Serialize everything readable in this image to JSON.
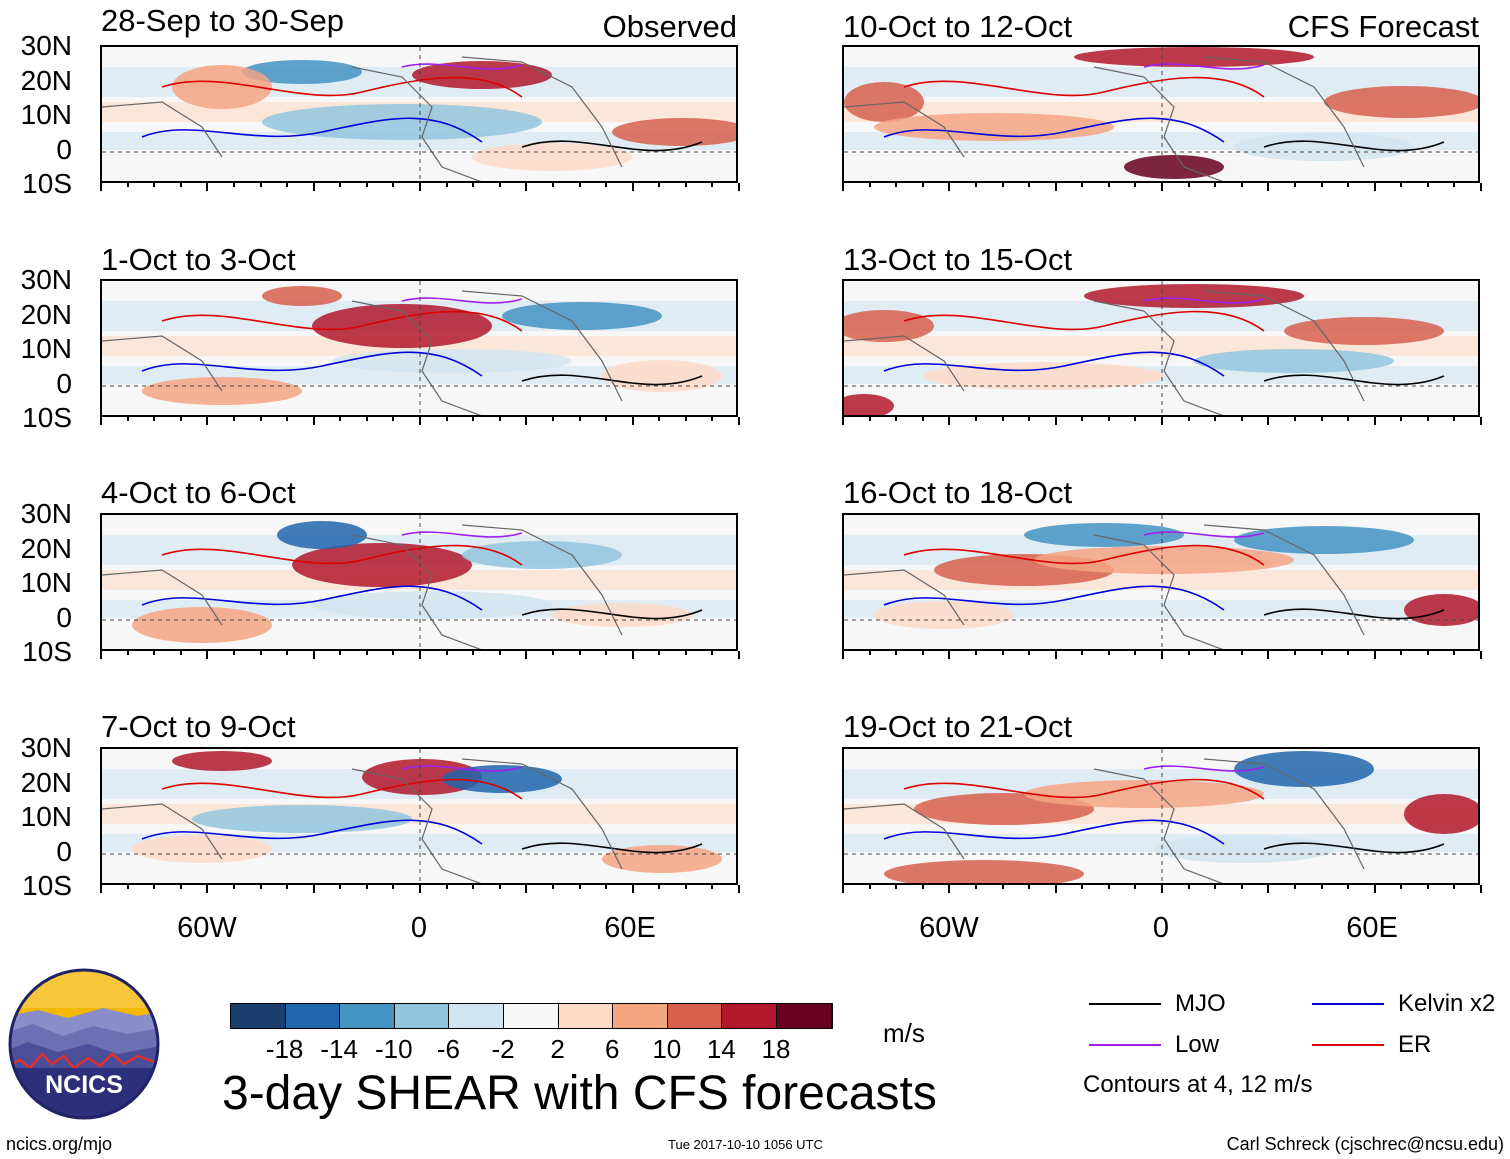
{
  "title": "3-day SHEAR with CFS forecasts",
  "units": "m/s",
  "observed_label": "Observed",
  "forecast_label": "CFS Forecast",
  "lat_labels": [
    "30N",
    "20N",
    "10N",
    "0",
    "10S"
  ],
  "lon_labels": [
    "60W",
    "0",
    "60E"
  ],
  "panels_left": [
    {
      "title": "28-Sep to 30-Sep"
    },
    {
      "title": "1-Oct to 3-Oct"
    },
    {
      "title": "4-Oct to 6-Oct"
    },
    {
      "title": "7-Oct to 9-Oct"
    }
  ],
  "panels_right": [
    {
      "title": "10-Oct to 12-Oct"
    },
    {
      "title": "13-Oct to 15-Oct"
    },
    {
      "title": "16-Oct to 18-Oct"
    },
    {
      "title": "19-Oct to 21-Oct"
    }
  ],
  "colorbar": {
    "labels": [
      "-18",
      "-14",
      "-10",
      "-6",
      "-2",
      "2",
      "6",
      "10",
      "14",
      "18"
    ],
    "colors": [
      "#1a3f6e",
      "#2166ac",
      "#4393c3",
      "#92c5de",
      "#d1e5f0",
      "#f7f7f7",
      "#fddbc7",
      "#f4a582",
      "#d6604d",
      "#b2182b",
      "#67001f"
    ]
  },
  "legend": [
    {
      "label": "MJO",
      "color": "#000000"
    },
    {
      "label": "Kelvin x2",
      "color": "#0000dd"
    },
    {
      "label": "Low",
      "color": "#a020f0"
    },
    {
      "label": "ER",
      "color": "#dd0000"
    }
  ],
  "contour_note": "Contours at 4, 12 m/s",
  "logo_text": "NCICS",
  "footer": {
    "url": "ncics.org/mjo",
    "timestamp": "Tue 2017-10-10 1056 UTC",
    "credit": "Carl Schreck (cjschrec@ncsu.edu)"
  }
}
